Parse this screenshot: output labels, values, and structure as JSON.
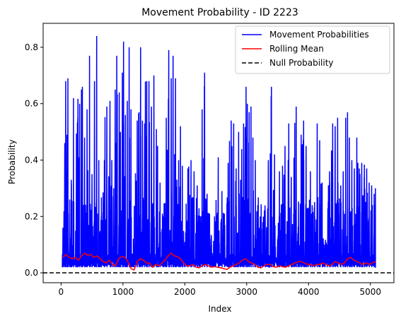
{
  "chart_data": {
    "type": "line",
    "title": "Movement Probability - ID 2223",
    "xlabel": "Index",
    "ylabel": "Probability",
    "xlim": [
      -290,
      5380
    ],
    "ylim": [
      -0.035,
      0.885
    ],
    "x_ticks": [
      0,
      1000,
      2000,
      3000,
      4000,
      5000
    ],
    "y_ticks": [
      0.0,
      0.2,
      0.4,
      0.6,
      0.8
    ],
    "x_tick_labels": [
      "0",
      "1000",
      "2000",
      "3000",
      "4000",
      "5000"
    ],
    "y_tick_labels": [
      "0.0",
      "0.2",
      "0.4",
      "0.6",
      "0.8"
    ],
    "grid": false,
    "legend_position": "upper right",
    "series": [
      {
        "name": "Movement Probabilities",
        "color": "#0000ff",
        "style": "solid",
        "x_start": 20,
        "x_end": 5090,
        "baseline": 0.02,
        "peaks": [
          [
            30,
            0.16
          ],
          [
            60,
            0.46
          ],
          [
            75,
            0.68
          ],
          [
            95,
            0.49
          ],
          [
            110,
            0.69
          ],
          [
            140,
            0.26
          ],
          [
            165,
            0.33
          ],
          [
            200,
            0.62
          ],
          [
            235,
            0.15
          ],
          [
            270,
            0.55
          ],
          [
            300,
            0.6
          ],
          [
            330,
            0.65
          ],
          [
            345,
            0.66
          ],
          [
            380,
            0.48
          ],
          [
            420,
            0.58
          ],
          [
            460,
            0.77
          ],
          [
            500,
            0.35
          ],
          [
            540,
            0.68
          ],
          [
            575,
            0.84
          ],
          [
            610,
            0.4
          ],
          [
            650,
            0.2
          ],
          [
            700,
            0.4
          ],
          [
            740,
            0.59
          ],
          [
            790,
            0.61
          ],
          [
            820,
            0.4
          ],
          [
            850,
            0.3
          ],
          [
            875,
            0.65
          ],
          [
            900,
            0.77
          ],
          [
            940,
            0.64
          ],
          [
            960,
            0.5
          ],
          [
            990,
            0.71
          ],
          [
            1010,
            0.82
          ],
          [
            1040,
            0.56
          ],
          [
            1070,
            0.61
          ],
          [
            1100,
            0.8
          ],
          [
            1130,
            0.58
          ],
          [
            1160,
            0.03
          ],
          [
            1200,
            0.1
          ],
          [
            1230,
            0.54
          ],
          [
            1260,
            0.57
          ],
          [
            1285,
            0.8
          ],
          [
            1315,
            0.54
          ],
          [
            1350,
            0.53
          ],
          [
            1385,
            0.68
          ],
          [
            1420,
            0.68
          ],
          [
            1460,
            0.59
          ],
          [
            1500,
            0.7
          ],
          [
            1540,
            0.51
          ],
          [
            1560,
            0.45
          ],
          [
            1600,
            0.32
          ],
          [
            1650,
            0.2
          ],
          [
            1700,
            0.55
          ],
          [
            1740,
            0.79
          ],
          [
            1780,
            0.69
          ],
          [
            1810,
            0.77
          ],
          [
            1850,
            0.69
          ],
          [
            1900,
            0.4
          ],
          [
            1930,
            0.52
          ],
          [
            1960,
            0.38
          ],
          [
            2000,
            0.11
          ],
          [
            2050,
            0.37
          ],
          [
            2100,
            0.4
          ],
          [
            2150,
            0.36
          ],
          [
            2200,
            0.31
          ],
          [
            2250,
            0.2
          ],
          [
            2280,
            0.58
          ],
          [
            2320,
            0.71
          ],
          [
            2360,
            0.28
          ],
          [
            2400,
            0.21
          ],
          [
            2430,
            0.13
          ],
          [
            2480,
            0.2
          ],
          [
            2540,
            0.41
          ],
          [
            2600,
            0.29
          ],
          [
            2640,
            0.21
          ],
          [
            2700,
            0.39
          ],
          [
            2750,
            0.54
          ],
          [
            2790,
            0.53
          ],
          [
            2830,
            0.37
          ],
          [
            2870,
            0.5
          ],
          [
            2900,
            0.33
          ],
          [
            2950,
            0.53
          ],
          [
            2990,
            0.66
          ],
          [
            3010,
            0.6
          ],
          [
            3040,
            0.57
          ],
          [
            3070,
            0.59
          ],
          [
            3100,
            0.48
          ],
          [
            3140,
            0.4
          ],
          [
            3180,
            0.24
          ],
          [
            3220,
            0.2
          ],
          [
            3260,
            0.18
          ],
          [
            3300,
            0.22
          ],
          [
            3350,
            0.4
          ],
          [
            3400,
            0.66
          ],
          [
            3450,
            0.42
          ],
          [
            3500,
            0.12
          ],
          [
            3530,
            0.36
          ],
          [
            3580,
            0.38
          ],
          [
            3620,
            0.45
          ],
          [
            3680,
            0.53
          ],
          [
            3720,
            0.34
          ],
          [
            3760,
            0.21
          ],
          [
            3800,
            0.59
          ],
          [
            3830,
            0.13
          ],
          [
            3880,
            0.49
          ],
          [
            3920,
            0.54
          ],
          [
            3960,
            0.45
          ],
          [
            3990,
            0.1
          ],
          [
            4030,
            0.36
          ],
          [
            4060,
            0.24
          ],
          [
            4100,
            0.2
          ],
          [
            4140,
            0.53
          ],
          [
            4180,
            0.47
          ],
          [
            4220,
            0.32
          ],
          [
            4260,
            0.1
          ],
          [
            4300,
            0.1
          ],
          [
            4340,
            0.36
          ],
          [
            4390,
            0.53
          ],
          [
            4430,
            0.52
          ],
          [
            4470,
            0.55
          ],
          [
            4520,
            0.31
          ],
          [
            4560,
            0.36
          ],
          [
            4600,
            0.55
          ],
          [
            4630,
            0.57
          ],
          [
            4660,
            0.48
          ],
          [
            4700,
            0.4
          ],
          [
            4740,
            0.37
          ],
          [
            4780,
            0.48
          ],
          [
            4820,
            0.37
          ],
          [
            4860,
            0.39
          ],
          [
            4900,
            0.34
          ],
          [
            4940,
            0.37
          ],
          [
            4980,
            0.32
          ],
          [
            5020,
            0.31
          ],
          [
            5060,
            0.28
          ],
          [
            5080,
            0.3
          ]
        ]
      },
      {
        "name": "Rolling Mean",
        "color": "#ff0000",
        "style": "solid",
        "x": [
          30,
          80,
          130,
          180,
          230,
          280,
          330,
          380,
          430,
          480,
          530,
          580,
          630,
          680,
          730,
          780,
          830,
          880,
          930,
          980,
          1030,
          1080,
          1130,
          1180,
          1230,
          1280,
          1330,
          1380,
          1430,
          1480,
          1530,
          1580,
          1630,
          1680,
          1730,
          1780,
          1830,
          1880,
          1930,
          1980,
          2030,
          2080,
          2130,
          2180,
          2230,
          2280,
          2330,
          2380,
          2430,
          2480,
          2530,
          2580,
          2630,
          2680,
          2730,
          2780,
          2830,
          2880,
          2930,
          2980,
          3030,
          3080,
          3130,
          3180,
          3230,
          3280,
          3330,
          3380,
          3430,
          3480,
          3530,
          3580,
          3630,
          3680,
          3730,
          3780,
          3830,
          3880,
          3930,
          3980,
          4030,
          4080,
          4130,
          4180,
          4230,
          4280,
          4330,
          4380,
          4430,
          4480,
          4530,
          4580,
          4630,
          4680,
          4730,
          4780,
          4830,
          4880,
          4930,
          4980,
          5030,
          5080
        ],
        "y": [
          0.055,
          0.065,
          0.055,
          0.05,
          0.055,
          0.045,
          0.06,
          0.07,
          0.062,
          0.065,
          0.055,
          0.06,
          0.05,
          0.04,
          0.035,
          0.045,
          0.03,
          0.025,
          0.05,
          0.058,
          0.055,
          0.04,
          0.015,
          0.01,
          0.04,
          0.05,
          0.045,
          0.035,
          0.035,
          0.02,
          0.03,
          0.025,
          0.035,
          0.045,
          0.06,
          0.07,
          0.06,
          0.058,
          0.05,
          0.035,
          0.025,
          0.025,
          0.03,
          0.02,
          0.018,
          0.025,
          0.03,
          0.025,
          0.02,
          0.022,
          0.02,
          0.018,
          0.015,
          0.012,
          0.02,
          0.025,
          0.03,
          0.035,
          0.045,
          0.05,
          0.04,
          0.035,
          0.03,
          0.02,
          0.018,
          0.025,
          0.03,
          0.03,
          0.022,
          0.02,
          0.025,
          0.022,
          0.02,
          0.025,
          0.03,
          0.035,
          0.04,
          0.04,
          0.035,
          0.03,
          0.03,
          0.025,
          0.03,
          0.03,
          0.035,
          0.03,
          0.025,
          0.03,
          0.04,
          0.035,
          0.03,
          0.035,
          0.05,
          0.055,
          0.045,
          0.04,
          0.035,
          0.03,
          0.035,
          0.03,
          0.035,
          0.04
        ]
      },
      {
        "name": "Null Probability",
        "color": "#000000",
        "style": "dashed",
        "y": 0.0
      }
    ]
  }
}
